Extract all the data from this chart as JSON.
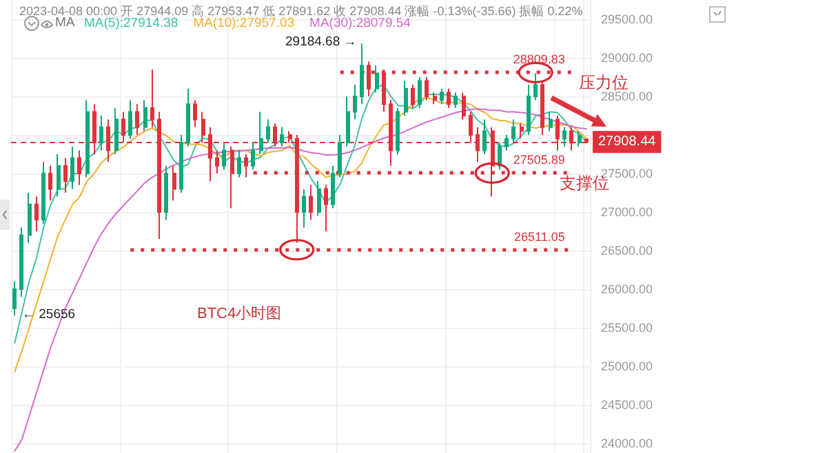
{
  "chart_data": {
    "type": "candlestick",
    "categories": [
      null,
      null,
      null,
      null,
      null,
      null,
      null,
      null,
      null,
      null,
      null,
      null,
      null,
      null,
      null,
      null,
      null,
      null,
      null,
      null,
      null,
      null,
      null,
      null,
      null,
      null,
      null,
      null,
      null,
      null,
      null,
      null,
      null,
      null,
      null,
      null,
      null,
      null,
      null,
      null,
      null,
      null,
      null,
      null,
      null,
      null,
      null,
      null,
      null,
      null,
      null,
      null,
      null,
      null,
      null,
      null,
      null,
      null,
      null,
      null,
      null,
      null,
      null,
      null,
      null,
      null,
      null,
      null,
      null,
      null,
      null,
      null,
      null,
      null,
      null,
      null,
      null,
      null,
      null,
      null
    ],
    "ohlc": [
      [
        25750,
        26100,
        25656,
        26000
      ],
      [
        26000,
        26800,
        25900,
        26700
      ],
      [
        26700,
        27250,
        26600,
        27100
      ],
      [
        27100,
        27200,
        26750,
        26900
      ],
      [
        26900,
        27650,
        26850,
        27500
      ],
      [
        27500,
        27600,
        27150,
        27300
      ],
      [
        27300,
        27750,
        27200,
        27600
      ],
      [
        27600,
        27700,
        27250,
        27400
      ],
      [
        27400,
        27850,
        27300,
        27700
      ],
      [
        27700,
        27800,
        27350,
        27500
      ],
      [
        27500,
        28450,
        27450,
        28300
      ],
      [
        28300,
        28400,
        27750,
        27900
      ],
      [
        27900,
        28250,
        27800,
        28100
      ],
      [
        28100,
        28200,
        27650,
        27800
      ],
      [
        27800,
        28350,
        27750,
        28200
      ],
      [
        28200,
        28300,
        27900,
        28000
      ],
      [
        28000,
        28450,
        27950,
        28300
      ],
      [
        28300,
        28400,
        28000,
        28100
      ],
      [
        28100,
        28450,
        28050,
        28350
      ],
      [
        28350,
        28850,
        28100,
        28200
      ],
      [
        28200,
        28300,
        26650,
        27000
      ],
      [
        27000,
        27600,
        26900,
        27500
      ],
      [
        27500,
        27600,
        27150,
        27300
      ],
      [
        27300,
        28000,
        27250,
        27900
      ],
      [
        27900,
        28600,
        27850,
        28400
      ],
      [
        28400,
        28450,
        28100,
        28200
      ],
      [
        28200,
        28300,
        27900,
        28000
      ],
      [
        28000,
        28100,
        27400,
        27700
      ],
      [
        27700,
        27800,
        27500,
        27600
      ],
      [
        27600,
        27900,
        27550,
        27800
      ],
      [
        27800,
        27850,
        27050,
        27500
      ],
      [
        27500,
        27800,
        27450,
        27700
      ],
      [
        27700,
        27750,
        27450,
        27600
      ],
      [
        27600,
        27900,
        27550,
        27800
      ],
      [
        27800,
        28300,
        27750,
        27950
      ],
      [
        27950,
        28200,
        27900,
        28100
      ],
      [
        28100,
        28150,
        27850,
        27900
      ],
      [
        27900,
        28100,
        27850,
        28000
      ],
      [
        28000,
        28050,
        27900,
        27950
      ],
      [
        27950,
        28000,
        26600,
        27000
      ],
      [
        27000,
        27300,
        26800,
        27200
      ],
      [
        27200,
        27350,
        26900,
        27000
      ],
      [
        27000,
        27400,
        26950,
        27300
      ],
      [
        27300,
        27350,
        26750,
        27100
      ],
      [
        27100,
        27600,
        27050,
        27500
      ],
      [
        27500,
        28000,
        27450,
        27900
      ],
      [
        27900,
        28500,
        27850,
        28300
      ],
      [
        28300,
        28650,
        28200,
        28500
      ],
      [
        28500,
        29184.68,
        28400,
        28900
      ],
      [
        28900,
        28950,
        28500,
        28600
      ],
      [
        28600,
        28900,
        28550,
        28800
      ],
      [
        28800,
        28850,
        28300,
        28400
      ],
      [
        28400,
        28450,
        27600,
        27800
      ],
      [
        27800,
        28350,
        27750,
        28300
      ],
      [
        28300,
        28700,
        28250,
        28600
      ],
      [
        28600,
        28650,
        28350,
        28400
      ],
      [
        28400,
        28750,
        28350,
        28700
      ],
      [
        28700,
        28750,
        28450,
        28500
      ],
      [
        28500,
        28550,
        28400,
        28450
      ],
      [
        28450,
        28600,
        28400,
        28550
      ],
      [
        28550,
        28600,
        28350,
        28400
      ],
      [
        28400,
        28550,
        28350,
        28500
      ],
      [
        28500,
        28550,
        28200,
        28250
      ],
      [
        28250,
        28300,
        27900,
        28000
      ],
      [
        28000,
        28100,
        27650,
        27800
      ],
      [
        27800,
        28200,
        27750,
        28050
      ],
      [
        28050,
        28100,
        27200,
        27600
      ],
      [
        27600,
        27900,
        27550,
        27850
      ],
      [
        27850,
        28000,
        27800,
        27950
      ],
      [
        27950,
        28200,
        27900,
        28100
      ],
      [
        28100,
        28150,
        27950,
        28050
      ],
      [
        28050,
        28650,
        28000,
        28500
      ],
      [
        28500,
        28800,
        28450,
        28650
      ],
      [
        28650,
        28700,
        28000,
        28100
      ],
      [
        28100,
        28300,
        28050,
        28200
      ],
      [
        28200,
        28250,
        27800,
        27950
      ],
      [
        27950,
        28100,
        27850,
        28050
      ],
      [
        28050,
        28100,
        27800,
        27900
      ],
      [
        27900,
        28050,
        27850,
        27990
      ],
      [
        27944.09,
        27953.47,
        27891.62,
        27908.44
      ]
    ],
    "colors": [
      "#13a87c",
      "#13a87c",
      "#13a87c",
      "#e0323c",
      "#13a87c",
      "#e0323c",
      "#13a87c",
      "#e0323c",
      "#13a87c",
      "#e0323c",
      "#13a87c",
      "#e0323c",
      "#13a87c",
      "#e0323c",
      "#13a87c",
      "#e0323c",
      "#13a87c",
      "#e0323c",
      "#13a87c",
      "#e0323c",
      "#e0323c",
      "#13a87c",
      "#e0323c",
      "#13a87c",
      "#13a87c",
      "#e0323c",
      "#e0323c",
      "#e0323c",
      "#e0323c",
      "#13a87c",
      "#e0323c",
      "#13a87c",
      "#e0323c",
      "#13a87c",
      "#13a87c",
      "#13a87c",
      "#e0323c",
      "#13a87c",
      "#e0323c",
      "#e0323c",
      "#13a87c",
      "#e0323c",
      "#13a87c",
      "#e0323c",
      "#13a87c",
      "#13a87c",
      "#13a87c",
      "#13a87c",
      "#13a87c",
      "#e0323c",
      "#13a87c",
      "#e0323c",
      "#e0323c",
      "#13a87c",
      "#13a87c",
      "#e0323c",
      "#13a87c",
      "#e0323c",
      "#e0323c",
      "#13a87c",
      "#e0323c",
      "#13a87c",
      "#e0323c",
      "#e0323c",
      "#e0323c",
      "#13a87c",
      "#e0323c",
      "#13a87c",
      "#13a87c",
      "#13a87c",
      "#e0323c",
      "#13a87c",
      "#13a87c",
      "#e0323c",
      "#13a87c",
      "#e0323c",
      "#13a87c",
      "#e0323c",
      "#13a87c",
      "#e0323c"
    ],
    "series": [
      {
        "name": "MA(5):27914.38",
        "type": "line",
        "color": "#3fc3a9",
        "values": [
          25300,
          25700,
          26100,
          26400,
          26800,
          27100,
          27300,
          27300,
          27500,
          27500,
          27700,
          27760,
          27900,
          27920,
          28060,
          28000,
          28080,
          28100,
          28190,
          28190,
          27990,
          27830,
          27670,
          27580,
          27620,
          27860,
          27960,
          27940,
          27780,
          27660,
          27720,
          27660,
          27640,
          27680,
          27710,
          27830,
          27870,
          27950,
          27980,
          27790,
          27610,
          27430,
          27290,
          27120,
          27220,
          27360,
          27620,
          27860,
          28220,
          28460,
          28620,
          28650,
          28500,
          28380,
          28380,
          28340,
          28400,
          28520,
          28530,
          28520,
          28520,
          28480,
          28420,
          28310,
          28190,
          28120,
          27940,
          27860,
          27850,
          27890,
          27990,
          28090,
          28250,
          28270,
          28300,
          28290,
          28190,
          28060,
          28020,
          27910
        ]
      },
      {
        "name": "MA(10):27957.03",
        "type": "line",
        "color": "#f2b12c",
        "values": [
          24930,
          25200,
          25500,
          25800,
          26100,
          26400,
          26700,
          26900,
          27100,
          27200,
          27400,
          27500,
          27640,
          27720,
          27790,
          27840,
          27920,
          27990,
          28050,
          28090,
          28030,
          27990,
          27910,
          27900,
          27880,
          27880,
          27870,
          27820,
          27740,
          27720,
          27790,
          27800,
          27800,
          27750,
          27730,
          27770,
          27790,
          27800,
          27860,
          27740,
          27720,
          27620,
          27540,
          27450,
          27480,
          27480,
          27500,
          27530,
          27640,
          27840,
          27990,
          28130,
          28150,
          28230,
          28300,
          28400,
          28470,
          28480,
          28460,
          28410,
          28420,
          28420,
          28410,
          28400,
          28330,
          28290,
          28210,
          28190,
          28180,
          28150,
          28150,
          28110,
          28090,
          28110,
          28120,
          28130,
          28130,
          28120,
          28040,
          27960
        ]
      },
      {
        "name": "MA(30):28079.54",
        "type": "line",
        "color": "#d668d0",
        "values": [
          23900,
          24050,
          24350,
          24650,
          24950,
          25250,
          25500,
          25750,
          25950,
          26150,
          26350,
          26550,
          26720,
          26860,
          26980,
          27080,
          27180,
          27280,
          27380,
          27450,
          27500,
          27560,
          27610,
          27650,
          27690,
          27720,
          27740,
          27760,
          27770,
          27780,
          27790,
          27790,
          27800,
          27810,
          27820,
          27830,
          27830,
          27830,
          27840,
          27820,
          27790,
          27770,
          27760,
          27740,
          27740,
          27750,
          27770,
          27800,
          27840,
          27880,
          27920,
          27960,
          27980,
          28010,
          28050,
          28090,
          28130,
          28170,
          28200,
          28230,
          28260,
          28290,
          28310,
          28330,
          28340,
          28330,
          28320,
          28320,
          28300,
          28300,
          28290,
          28280,
          28260,
          28230,
          28200,
          28170,
          28140,
          28110,
          28090,
          28080
        ]
      }
    ],
    "ylim": [
      23875,
      29750
    ],
    "yticks": [
      {
        "value": 24000,
        "label": "24000.00"
      },
      {
        "value": 24500,
        "label": "24500.00"
      },
      {
        "value": 25000,
        "label": "25000.00"
      },
      {
        "value": 25500,
        "label": "25500.00"
      },
      {
        "value": 26000,
        "label": "26000.00"
      },
      {
        "value": 26500,
        "label": "26500.00"
      },
      {
        "value": 27000,
        "label": "27000.00"
      },
      {
        "value": 27500,
        "label": "27500.00"
      },
      {
        "value": 28000,
        "label": null
      },
      {
        "value": 28500,
        "label": "28500.00"
      },
      {
        "value": 29000,
        "label": "29000.00"
      },
      {
        "value": 29500,
        "label": "29500.00"
      }
    ],
    "tick_labels": "y",
    "grid": true,
    "ref_lines": [
      {
        "axis": "y",
        "value": 28809.83,
        "label": "28809.83",
        "color": "#d9333f",
        "line_style": "dotted"
      },
      {
        "axis": "y",
        "value": 27505.89,
        "label": "27505.89",
        "color": "#d9333f",
        "line_style": "dotted"
      },
      {
        "axis": "y",
        "value": 26511.05,
        "label": "26511.05",
        "color": "#d9333f",
        "line_style": "dotted"
      },
      {
        "axis": "y",
        "value": 27908.44,
        "label": "27908.44",
        "color": "#e0323c",
        "line_style": "dashed"
      }
    ],
    "annotations": [
      "2023-04-08 00:00 开 27944.09 高 27953.47 低 27891.62 收 27908.44 涨幅 -0.13%(-35.66) 振幅 0.22%",
      "MA",
      "29184.68 →",
      "← 25656",
      "压力位",
      "支撑位",
      "BTC4小时图"
    ]
  }
}
